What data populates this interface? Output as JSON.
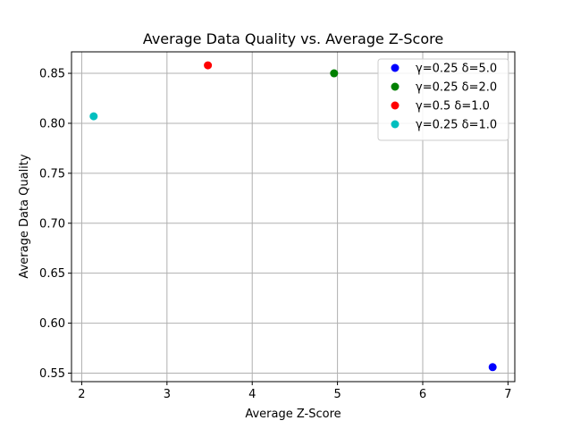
{
  "chart_data": {
    "type": "scatter",
    "title": "Average Data Quality vs. Average Z-Score",
    "xlabel": "Average Z-Score",
    "ylabel": "Average Data Quality",
    "xlim": [
      1.88,
      7.08
    ],
    "ylim": [
      0.5415,
      0.8715
    ],
    "xticks": [
      2,
      3,
      4,
      5,
      6,
      7
    ],
    "yticks": [
      0.55,
      0.6,
      0.65,
      0.7,
      0.75,
      0.8,
      0.85
    ],
    "xtick_labels": [
      "2",
      "3",
      "4",
      "5",
      "6",
      "7"
    ],
    "ytick_labels": [
      "0.55",
      "0.60",
      "0.65",
      "0.70",
      "0.75",
      "0.80",
      "0.85"
    ],
    "grid": true,
    "legend_position": "top-right",
    "series": [
      {
        "name": "γ=0.25 δ=5.0",
        "color": "#0000ff",
        "points": [
          {
            "x": 6.82,
            "y": 0.556
          }
        ]
      },
      {
        "name": "γ=0.25 δ=2.0",
        "color": "#008000",
        "points": [
          {
            "x": 4.96,
            "y": 0.85
          }
        ]
      },
      {
        "name": "γ=0.5 δ=1.0",
        "color": "#ff0000",
        "points": [
          {
            "x": 3.48,
            "y": 0.858
          }
        ]
      },
      {
        "name": "γ=0.25 δ=1.0",
        "color": "#00bfbf",
        "points": [
          {
            "x": 2.14,
            "y": 0.807
          }
        ]
      }
    ]
  }
}
